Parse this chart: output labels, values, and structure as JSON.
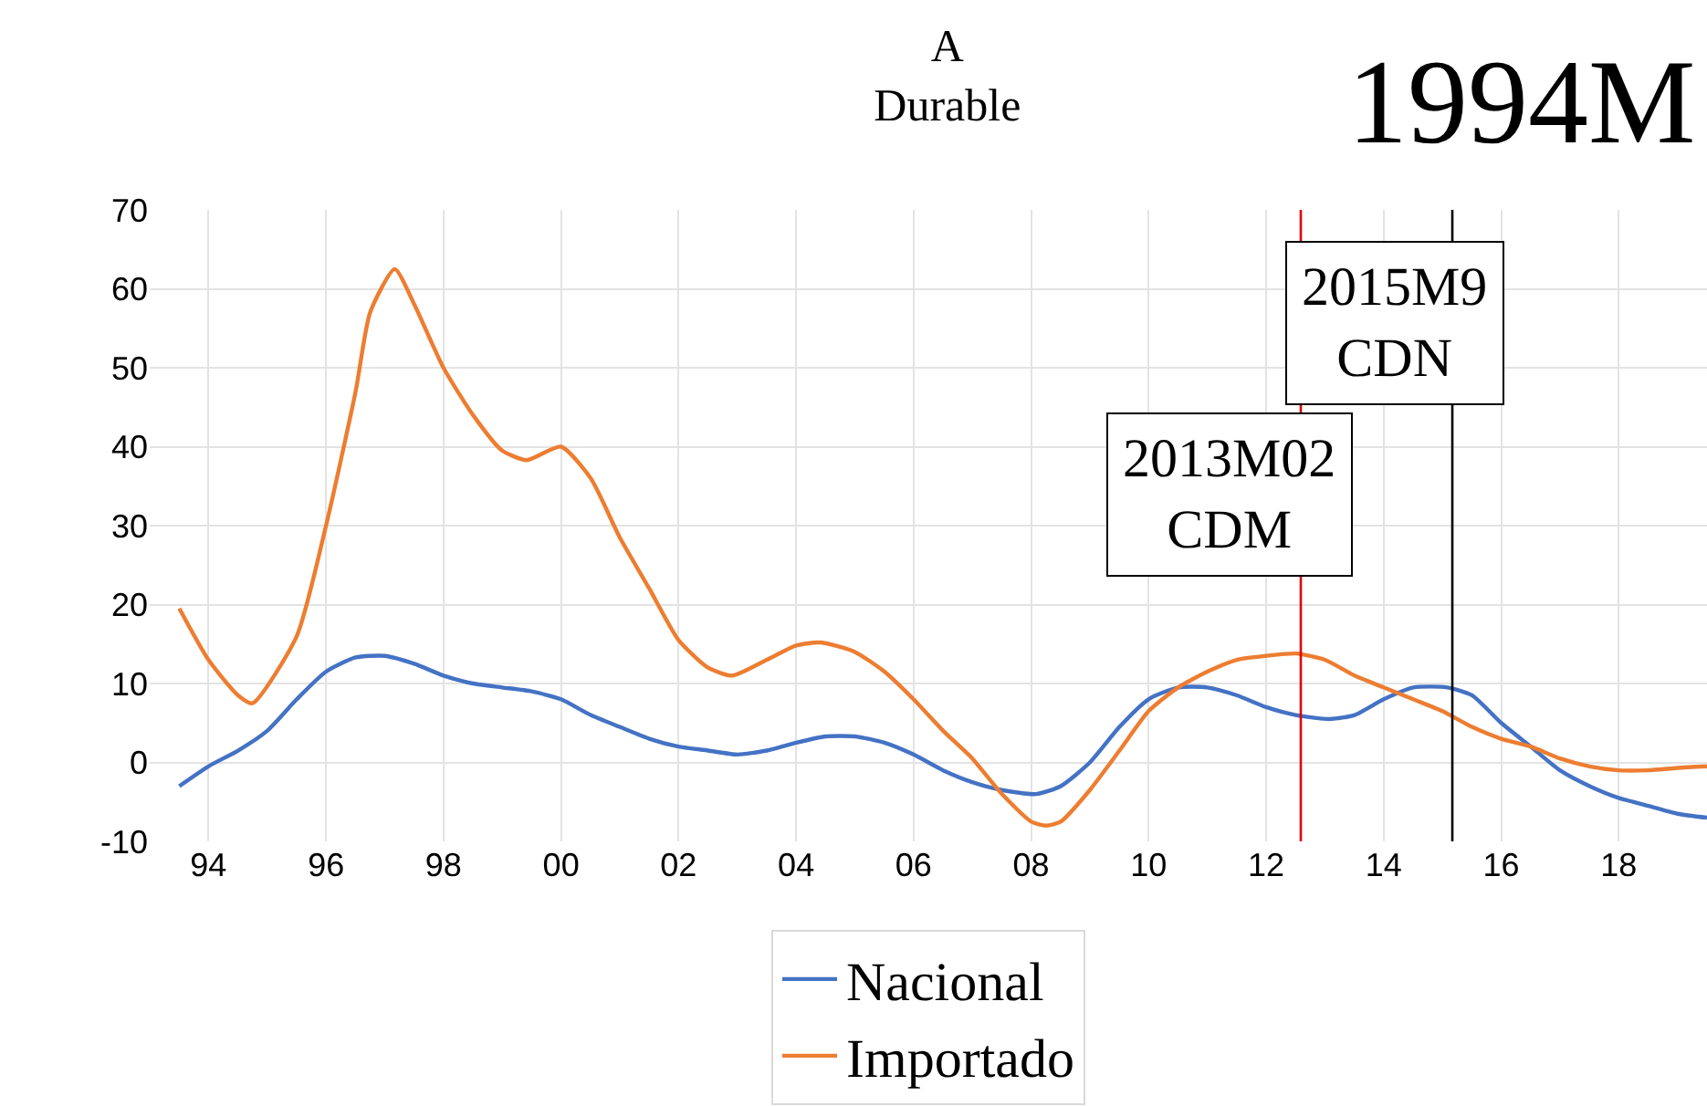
{
  "chart_data": {
    "type": "line",
    "title": "A\nDurable",
    "annotations": [
      "1994M"
    ],
    "xlim": [
      "1993-07",
      "2020-01"
    ],
    "xticks": [
      {
        "value": "1994-07",
        "label": "94"
      },
      {
        "value": "1996-07",
        "label": "96"
      },
      {
        "value": "1998-07",
        "label": "98"
      },
      {
        "value": "2000-07",
        "label": "00"
      },
      {
        "value": "2002-07",
        "label": "02"
      },
      {
        "value": "2004-07",
        "label": "04"
      },
      {
        "value": "2006-07",
        "label": "06"
      },
      {
        "value": "2008-07",
        "label": "08"
      },
      {
        "value": "2010-07",
        "label": "10"
      },
      {
        "value": "2012-07",
        "label": "12"
      },
      {
        "value": "2014-07",
        "label": "14"
      },
      {
        "value": "2016-07",
        "label": "16"
      },
      {
        "value": "2018-07",
        "label": "18"
      }
    ],
    "ylim": [
      -10,
      70
    ],
    "yticks": [
      -10,
      0,
      10,
      20,
      30,
      40,
      50,
      60,
      70
    ],
    "grid": true,
    "legend": "bottom",
    "line_style": "solid",
    "marker": "none",
    "ref_lines": [
      {
        "axis": "x",
        "value": "2013-02",
        "label": "2013M02\nCDM",
        "color": "#e00000"
      },
      {
        "axis": "x",
        "value": "2015-09",
        "label": "2015M9\nCDN",
        "color": "#000000"
      }
    ],
    "series": [
      {
        "name": "Nacional",
        "color": "#4472c4",
        "x": [
          "1994-01",
          "1994-07",
          "1995-01",
          "1995-07",
          "1996-01",
          "1996-07",
          "1997-01",
          "1997-07",
          "1998-01",
          "1998-07",
          "1999-01",
          "1999-07",
          "2000-01",
          "2000-07",
          "2001-01",
          "2001-07",
          "2002-01",
          "2002-07",
          "2003-01",
          "2003-07",
          "2004-01",
          "2004-07",
          "2005-01",
          "2005-07",
          "2006-01",
          "2006-07",
          "2007-01",
          "2007-07",
          "2008-01",
          "2008-08",
          "2009-01",
          "2009-07",
          "2010-01",
          "2010-07",
          "2011-01",
          "2011-07",
          "2012-01",
          "2012-07",
          "2013-01",
          "2013-08",
          "2014-01",
          "2014-07",
          "2015-01",
          "2015-08",
          "2016-01",
          "2016-07",
          "2017-01",
          "2017-07",
          "2018-01",
          "2018-07",
          "2019-01",
          "2019-07",
          "2020-01"
        ],
        "values": [
          -3,
          -0.5,
          1.5,
          4,
          8,
          11.5,
          13.3,
          13.5,
          12.5,
          11,
          10,
          9.5,
          9,
          8,
          6,
          4.5,
          3,
          2,
          1.5,
          1,
          1.5,
          2.5,
          3.3,
          3.3,
          2.5,
          1,
          -1,
          -2.5,
          -3.5,
          -4,
          -3,
          0,
          4.5,
          8,
          9.5,
          9.5,
          8.5,
          7,
          6,
          5.5,
          6,
          8,
          9.5,
          9.5,
          8.5,
          5,
          2,
          -1,
          -3,
          -4.5,
          -5.5,
          -6.5,
          -7
        ]
      },
      {
        "name": "Importado",
        "color": "#ed7d31",
        "x": [
          "1994-01",
          "1994-07",
          "1995-01",
          "1995-04",
          "1996-01",
          "1996-07",
          "1997-01",
          "1997-04",
          "1997-09",
          "1998-01",
          "1998-07",
          "1999-01",
          "1999-07",
          "1999-12",
          "2000-07",
          "2001-01",
          "2001-07",
          "2002-01",
          "2002-07",
          "2003-01",
          "2003-06",
          "2004-01",
          "2004-07",
          "2004-12",
          "2005-07",
          "2006-01",
          "2006-07",
          "2007-01",
          "2007-07",
          "2008-01",
          "2008-07",
          "2008-10",
          "2009-01",
          "2009-07",
          "2010-01",
          "2010-07",
          "2011-01",
          "2011-07",
          "2012-01",
          "2012-07",
          "2013-01",
          "2013-07",
          "2014-01",
          "2014-07",
          "2015-01",
          "2015-07",
          "2016-01",
          "2016-07",
          "2017-01",
          "2017-07",
          "2018-01",
          "2018-07",
          "2019-01",
          "2019-07",
          "2020-01"
        ],
        "values": [
          19.5,
          13,
          8.5,
          7.5,
          16,
          30,
          47,
          57,
          62.5,
          58,
          50,
          44,
          39.5,
          38.3,
          40,
          36,
          28.5,
          22,
          15.5,
          12,
          11,
          13,
          14.8,
          15.2,
          14,
          11.5,
          8,
          4,
          0.5,
          -4,
          -7.5,
          -8,
          -7.5,
          -3.5,
          1.5,
          6.5,
          9.5,
          11.5,
          13,
          13.5,
          13.8,
          13,
          11,
          9.5,
          8,
          6.5,
          4.5,
          3,
          2,
          0.5,
          -0.5,
          -1,
          -1,
          -0.7,
          -0.5
        ]
      }
    ]
  }
}
